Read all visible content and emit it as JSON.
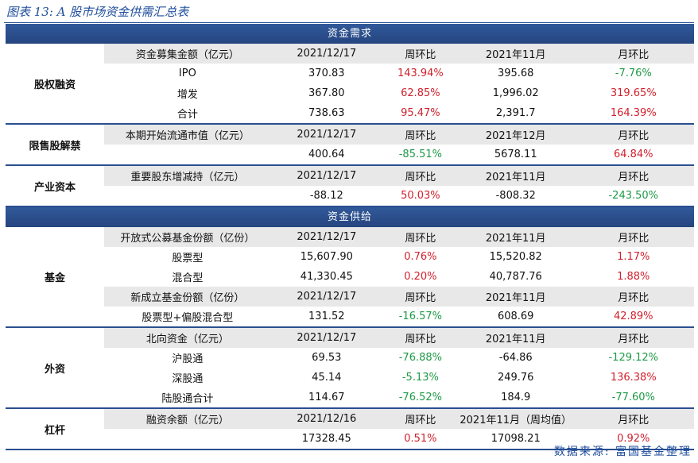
{
  "title": "图表 13:  A 股市场资金供需汇总表",
  "source": "数据来源:  富国基金整理",
  "sections": [
    {
      "name": "资金需求",
      "groups": [
        {
          "label": "股权融资",
          "rows": [
            {
              "header": true,
              "cells": [
                "资金募集金额（亿元）",
                "2021/12/17",
                "周环比",
                "2021年11月",
                "月环比"
              ]
            },
            {
              "cells": [
                "IPO",
                "370.83",
                "143.94%",
                "395.68",
                "-7.76%"
              ]
            },
            {
              "cells": [
                "增发",
                "367.80",
                "62.85%",
                "1,996.02",
                "319.65%"
              ]
            },
            {
              "cells": [
                "合计",
                "738.63",
                "95.47%",
                "2,391.7",
                "164.39%"
              ]
            }
          ]
        },
        {
          "label": "限售股解禁",
          "rows": [
            {
              "header": true,
              "cells": [
                "本期开始流通市值（亿元）",
                "2021/12/17",
                "周环比",
                "2021年12月",
                "月环比"
              ]
            },
            {
              "cells": [
                "",
                "400.64",
                "-85.51%",
                "5678.11",
                "64.84%"
              ]
            }
          ]
        },
        {
          "label": "产业资本",
          "rows": [
            {
              "header": true,
              "cells": [
                "重要股东增减持（亿元）",
                "2021/12/17",
                "周环比",
                "2021年11月",
                "月环比"
              ]
            },
            {
              "cells": [
                "",
                "-88.12",
                "50.03%",
                "-808.32",
                "-243.50%"
              ]
            }
          ]
        }
      ]
    },
    {
      "name": "资金供给",
      "groups": [
        {
          "label": "基金",
          "rows": [
            {
              "header": true,
              "cells": [
                "开放式公募基金份额（亿份）",
                "2021/12/17",
                "周环比",
                "2021年11月",
                "月环比"
              ]
            },
            {
              "cells": [
                "股票型",
                "15,607.90",
                "0.76%",
                "15,520.82",
                "1.17%"
              ]
            },
            {
              "cells": [
                "混合型",
                "41,330.45",
                "0.20%",
                "40,787.76",
                "1.88%"
              ]
            },
            {
              "header": true,
              "cells": [
                "新成立基金份额（亿份）",
                "2021/12/17",
                "周环比",
                "2021年11月",
                "月环比"
              ]
            },
            {
              "cells": [
                "股票型+偏股混合型",
                "131.52",
                "-16.57%",
                "608.69",
                "42.89%"
              ]
            }
          ]
        },
        {
          "label": "外资",
          "rows": [
            {
              "header": true,
              "cells": [
                "北向资金（亿元）",
                "2021/12/17",
                "周环比",
                "2021年11月",
                "月环比"
              ]
            },
            {
              "cells": [
                "沪股通",
                "69.53",
                "-76.88%",
                "-64.86",
                "-129.12%"
              ]
            },
            {
              "cells": [
                "深股通",
                "45.14",
                "-5.13%",
                "249.76",
                "136.38%"
              ]
            },
            {
              "cells": [
                "陆股通合计",
                "114.67",
                "-76.52%",
                "184.9",
                "-77.60%"
              ]
            }
          ]
        },
        {
          "label": "杠杆",
          "rows": [
            {
              "header": true,
              "cells": [
                "融资余额（亿元）",
                "2021/12/16",
                "周环比",
                "2021年11月（周均值）",
                "月环比"
              ]
            },
            {
              "cells": [
                "",
                "17328.45",
                "0.51%",
                "17098.21",
                "0.92%"
              ]
            }
          ]
        }
      ]
    }
  ]
}
